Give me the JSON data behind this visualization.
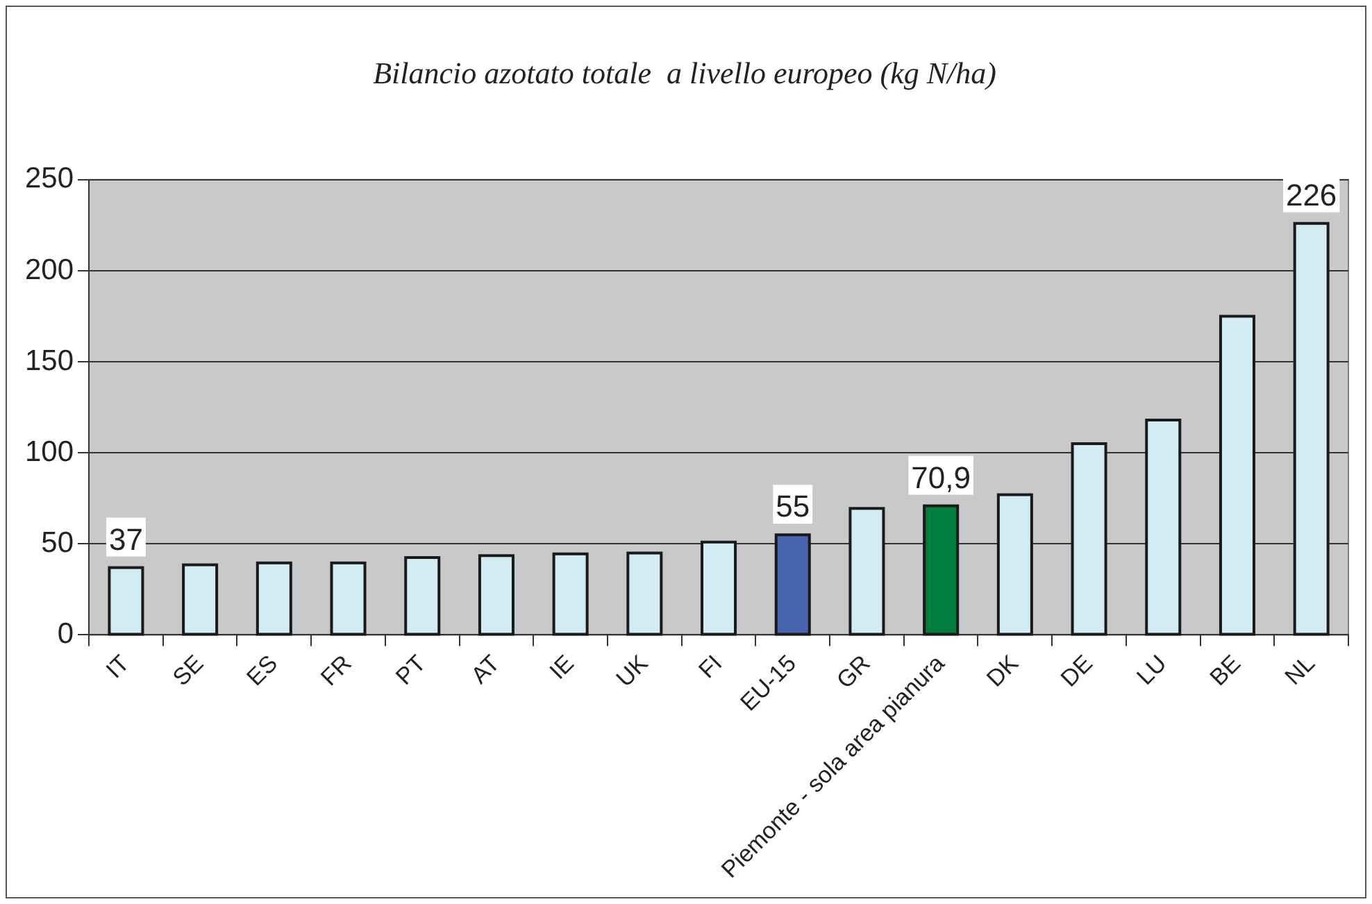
{
  "chart_data": {
    "type": "bar",
    "title": "Bilancio azotato totale  a livello europeo (kg N/ha)",
    "categories": [
      "IT",
      "SE",
      "ES",
      "FR",
      "PT",
      "AT",
      "IE",
      "UK",
      "FI",
      "EU-15",
      "GR",
      "Piemonte - sola area pianura",
      "DK",
      "DE",
      "LU",
      "BE",
      "NL"
    ],
    "values": [
      37,
      38.5,
      39.5,
      39.5,
      42.5,
      43.5,
      44.5,
      45,
      51,
      55,
      69.5,
      70.9,
      77,
      105,
      118,
      175,
      226
    ],
    "colors": [
      "#d3ebf2",
      "#d3ebf2",
      "#d3ebf2",
      "#d3ebf2",
      "#d3ebf2",
      "#d3ebf2",
      "#d3ebf2",
      "#d3ebf2",
      "#d3ebf2",
      "#4864b0",
      "#d3ebf2",
      "#007d3c",
      "#d3ebf2",
      "#d3ebf2",
      "#d3ebf2",
      "#d3ebf2",
      "#d3ebf2"
    ],
    "value_labels": [
      "37",
      null,
      null,
      null,
      null,
      null,
      null,
      null,
      null,
      "55",
      null,
      "70,9",
      null,
      null,
      null,
      null,
      "226"
    ],
    "ylim": [
      0,
      250
    ],
    "yticks": [
      0,
      50,
      100,
      150,
      200,
      250
    ],
    "grid": "y",
    "legend": false
  }
}
